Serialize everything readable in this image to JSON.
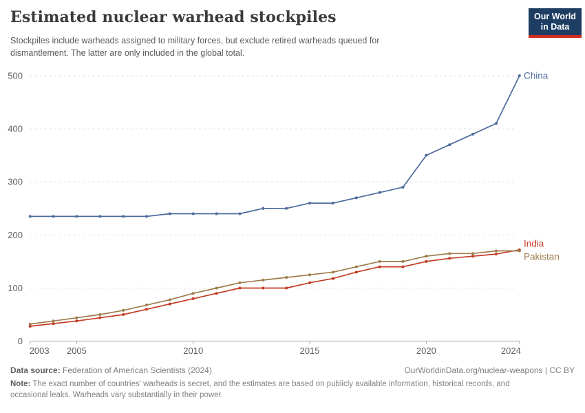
{
  "header": {
    "title": "Estimated nuclear warhead stockpiles",
    "subtitle": "Stockpiles include warheads assigned to military forces, but exclude retired warheads queued for dismantlement. The latter are only included in the global total.",
    "logo": {
      "line1": "Our World",
      "line2": "in Data"
    }
  },
  "chart_data": {
    "type": "line",
    "x": [
      2003,
      2004,
      2005,
      2006,
      2007,
      2008,
      2009,
      2010,
      2011,
      2012,
      2013,
      2014,
      2015,
      2016,
      2017,
      2018,
      2019,
      2020,
      2021,
      2022,
      2023,
      2024
    ],
    "series": [
      {
        "name": "China",
        "color": "#4C6A9C",
        "values": [
          235,
          235,
          235,
          235,
          235,
          235,
          240,
          240,
          240,
          240,
          250,
          250,
          260,
          260,
          270,
          280,
          290,
          350,
          370,
          390,
          410,
          500
        ]
      },
      {
        "name": "India",
        "color": "#C23B23",
        "values": [
          28,
          33,
          38,
          44,
          50,
          60,
          70,
          80,
          90,
          100,
          100,
          100,
          110,
          118,
          130,
          140,
          140,
          150,
          156,
          160,
          164,
          172
        ]
      },
      {
        "name": "Pakistan",
        "color": "#9C7C4B",
        "values": [
          32,
          38,
          44,
          50,
          58,
          68,
          78,
          90,
          100,
          110,
          115,
          120,
          125,
          130,
          140,
          150,
          150,
          160,
          165,
          165,
          170,
          170
        ]
      }
    ],
    "title": "Estimated nuclear warhead stockpiles",
    "xlabel": "",
    "ylabel": "",
    "ylim": [
      0,
      500
    ],
    "yticks": [
      0,
      100,
      200,
      300,
      400,
      500
    ],
    "xticks": [
      2003,
      2005,
      2010,
      2015,
      2020,
      2024
    ],
    "grid": "horizontal-dashed",
    "legend_position": "line-end-labels"
  },
  "axis_style": {
    "text_color": "#5f5f5f",
    "grid_color": "#dddddd",
    "axis_color": "#a6a6a6"
  },
  "footer": {
    "datasource_label": "Data source:",
    "datasource_value": "Federation of American Scientists (2024)",
    "link": "OurWorldinData.org/nuclear-weapons | CC BY",
    "note_label": "Note:",
    "note_text": "The exact number of countries' warheads is secret, and the estimates are based on publicly available information, historical records, and occasional leaks. Warheads vary substantially in their power."
  }
}
